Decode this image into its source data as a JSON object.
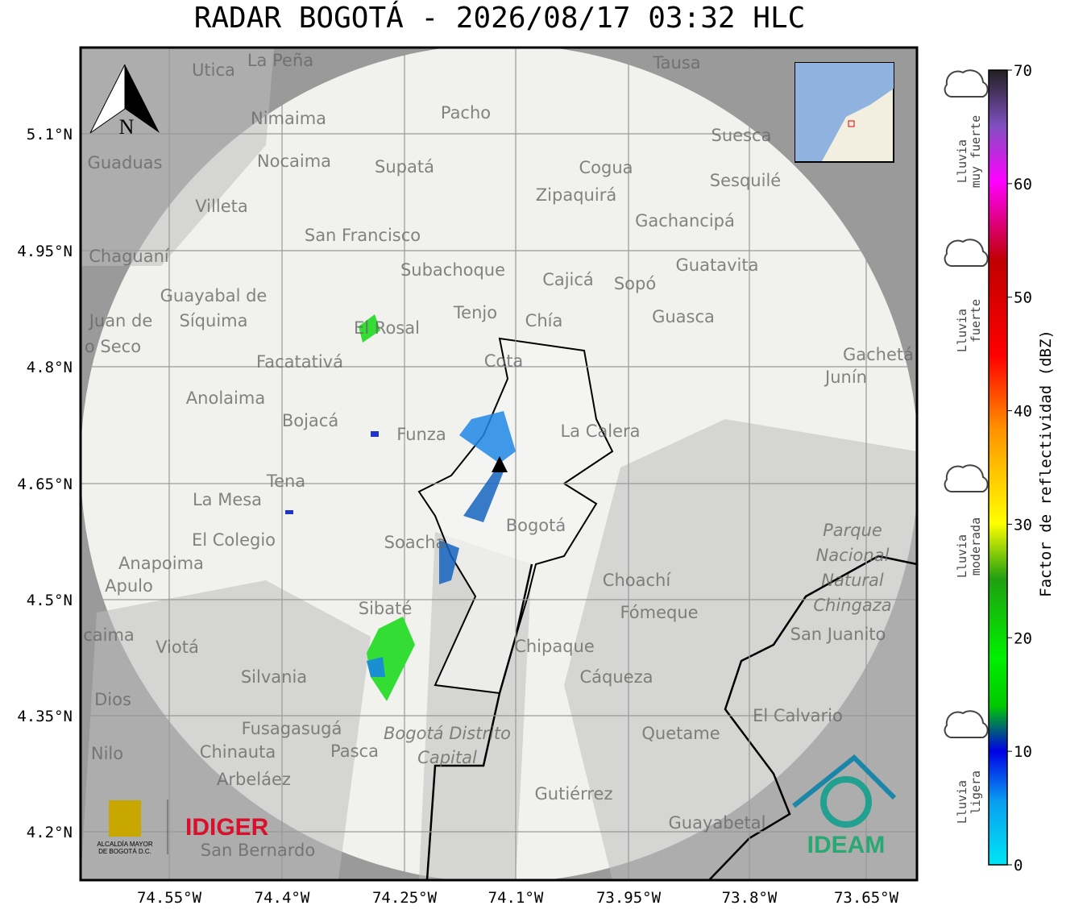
{
  "title": "RADAR BOGOTÁ - 2026/08/17 03:32 HLC",
  "lat_ticks": [
    "5.1°N",
    "4.95°N",
    "4.8°N",
    "4.65°N",
    "4.5°N",
    "4.35°N",
    "4.2°N"
  ],
  "lon_ticks": [
    "74.55°W",
    "74.4°W",
    "74.25°W",
    "74.1°W",
    "73.95°W",
    "73.8°W",
    "73.65°W"
  ],
  "compass": "N",
  "colorbar": {
    "label": "Factor de reflectividad (dBZ)",
    "range": [
      0,
      70
    ],
    "ticks": [
      0,
      10,
      20,
      30,
      40,
      50,
      60,
      70
    ]
  },
  "rain_levels": [
    {
      "lines": [
        "Lluvia",
        "muy fuerte"
      ]
    },
    {
      "lines": [
        "Lluvia",
        "fuerte"
      ]
    },
    {
      "lines": [
        "Lluvia",
        "moderada"
      ]
    },
    {
      "lines": [
        "Lluvia",
        "ligera"
      ]
    }
  ],
  "logos": {
    "alcaldia": [
      "ALCALDÍA MAYOR",
      "DE BOGOTÁ D.C."
    ],
    "idiger": "IDIGER",
    "ideam": "IDEAM"
  },
  "places": [
    "La Peña",
    "Utica",
    "Tausa",
    "Pacho",
    "Nimaima",
    "Suesca",
    "Guaduas",
    "Nocaima",
    "Supatá",
    "Cogua",
    "Sesquilé",
    "Zipaquirá",
    "Villeta",
    "Gachancipá",
    "San Francisco",
    "Chaguaní",
    "Guatavita",
    "Subachoque",
    "Cajicá",
    "Sopó",
    "Guayabal de",
    "Síquima",
    "Tenjo",
    "Guasca",
    "Chía",
    "Juan de",
    "o Seco",
    "El Rosal",
    "Cota",
    "Gachetá",
    "Junín",
    "Facatativá",
    "Anolaima",
    "La Calera",
    "Bojacá",
    "Funza",
    "Tena",
    "La Mesa",
    "Bogotá",
    "Parque",
    "Nacional",
    "Natural",
    "Chingaza",
    "El Colegio",
    "Soacha",
    "Anapoima",
    "Apulo",
    "Choachí",
    "Sibaté",
    "Fómeque",
    "San Juanito",
    "Viotá",
    "Chipaque",
    "Silvania",
    "Cáqueza",
    "Dios",
    "El Calvario",
    "Fusagasugá",
    "Bogotá Distrito",
    "Capital",
    "Quetame",
    "Nilo",
    "Chinauta",
    "Pasca",
    "Arbeláez",
    "Gutiérrez",
    "Guayabetal",
    "San Bernardo",
    "caima"
  ]
}
